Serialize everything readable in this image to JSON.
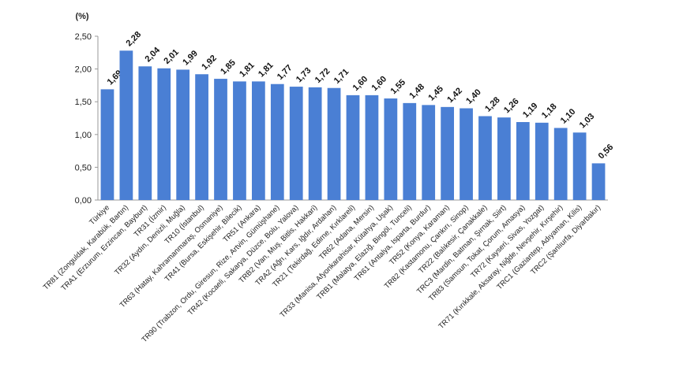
{
  "chart_data": {
    "type": "bar",
    "ylabel": "(%)",
    "ylim": [
      0,
      2.5
    ],
    "yticks": [
      "0,00",
      "0,50",
      "1,00",
      "1,50",
      "2,00",
      "2,50"
    ],
    "grid": false,
    "legend": "none",
    "bar_color": "#4a7fd4",
    "categories": [
      "Türkiye",
      "TR81 (Zonguldak, Karabük, Bartın)",
      "TRA1 (Erzurum, Erzincan, Bayburt)",
      "TR31 (İzmir)",
      "TR32 (Aydın, Denizli, Muğla)",
      "TR10 (İstanbul)",
      "TR63 (Hatay, Kahramanmaraş, Osmaniye)",
      "TR41 (Bursa, Eskişehir, Bilecik)",
      "TR51 (Ankara)",
      "TR90 (Trabzon, Ordu, Giresun, Rize, Artvin, Gümüşhane)",
      "TR42 (Kocaeli, Sakarya, Düzce, Bolu, Yalova)",
      "TRB2 (Van, Muş, Bitlis, Hakkari)",
      "TRA2 (Ağrı, Kars, Iğdır, Ardahan)",
      "TR21 (Tekirdağ, Edirne, Kırklareli)",
      "TR62 (Adana, Mersin)",
      "TR33 (Manisa, Afyonkarahisar, Kütahya, Uşak)",
      "TRB1 (Malatya, Elazığ, Bingöl, Tunceli)",
      "TR61 (Antalya, Isparta, Burdur)",
      "TR52 (Konya, Karaman)",
      "TR82 (Kastamonu, Çankırı, Sinop)",
      "TR22 (Balıkesir, Çanakkale)",
      "TRC3 (Mardin, Batman, Şırnak, Siirt)",
      "TR83 (Samsun, Tokat, Çorum, Amasya)",
      "TR72 (Kayseri, Sivas, Yozgat)",
      "TR71 (Kırıkkale, Aksaray, Niğde, Nevşehir, Kırşehir)",
      "TRC1 (Gaziantep, Adıyaman, Kilis)",
      "TRC2 (Şanlıurfa, Diyarbakır)"
    ],
    "values": [
      1.69,
      2.28,
      2.04,
      2.01,
      1.99,
      1.92,
      1.85,
      1.81,
      1.81,
      1.77,
      1.73,
      1.72,
      1.71,
      1.6,
      1.6,
      1.55,
      1.48,
      1.45,
      1.42,
      1.4,
      1.28,
      1.26,
      1.19,
      1.18,
      1.1,
      1.03,
      0.56
    ],
    "value_labels": [
      "1,69",
      "2,28",
      "2,04",
      "2,01",
      "1,99",
      "1,92",
      "1,85",
      "1,81",
      "1,81",
      "1,77",
      "1,73",
      "1,72",
      "1,71",
      "1,60",
      "1,60",
      "1,55",
      "1,48",
      "1,45",
      "1,42",
      "1,40",
      "1,28",
      "1,26",
      "1,19",
      "1,18",
      "1,10",
      "1,03",
      "0,56"
    ]
  }
}
